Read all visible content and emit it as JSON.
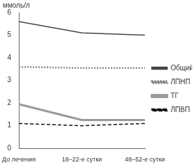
{
  "chart_data": {
    "type": "line",
    "ylabel": "ммоль/л",
    "categories": [
      "До лечения",
      "18–22-е сутки",
      "48–52-е сутки"
    ],
    "series": [
      {
        "name": "Общий ХС",
        "color": "#444444",
        "line_style": "solid",
        "values": [
          5.6,
          5.1,
          5.0
        ]
      },
      {
        "name": "ЛПНП",
        "color": "#888888",
        "line_style": "dotted",
        "values": [
          3.6,
          3.55,
          3.55
        ]
      },
      {
        "name": "ТГ",
        "color": "#9a9a9a",
        "line_style": "double",
        "values": [
          1.95,
          1.25,
          1.25
        ]
      },
      {
        "name": "ЛПВП",
        "color": "#111111",
        "line_style": "dashed",
        "values": [
          1.1,
          1.0,
          1.1
        ]
      }
    ],
    "ylim": [
      0,
      6
    ],
    "yticks": [
      0,
      1,
      2,
      3,
      4,
      5,
      6
    ],
    "grid": false,
    "legend": "right"
  }
}
